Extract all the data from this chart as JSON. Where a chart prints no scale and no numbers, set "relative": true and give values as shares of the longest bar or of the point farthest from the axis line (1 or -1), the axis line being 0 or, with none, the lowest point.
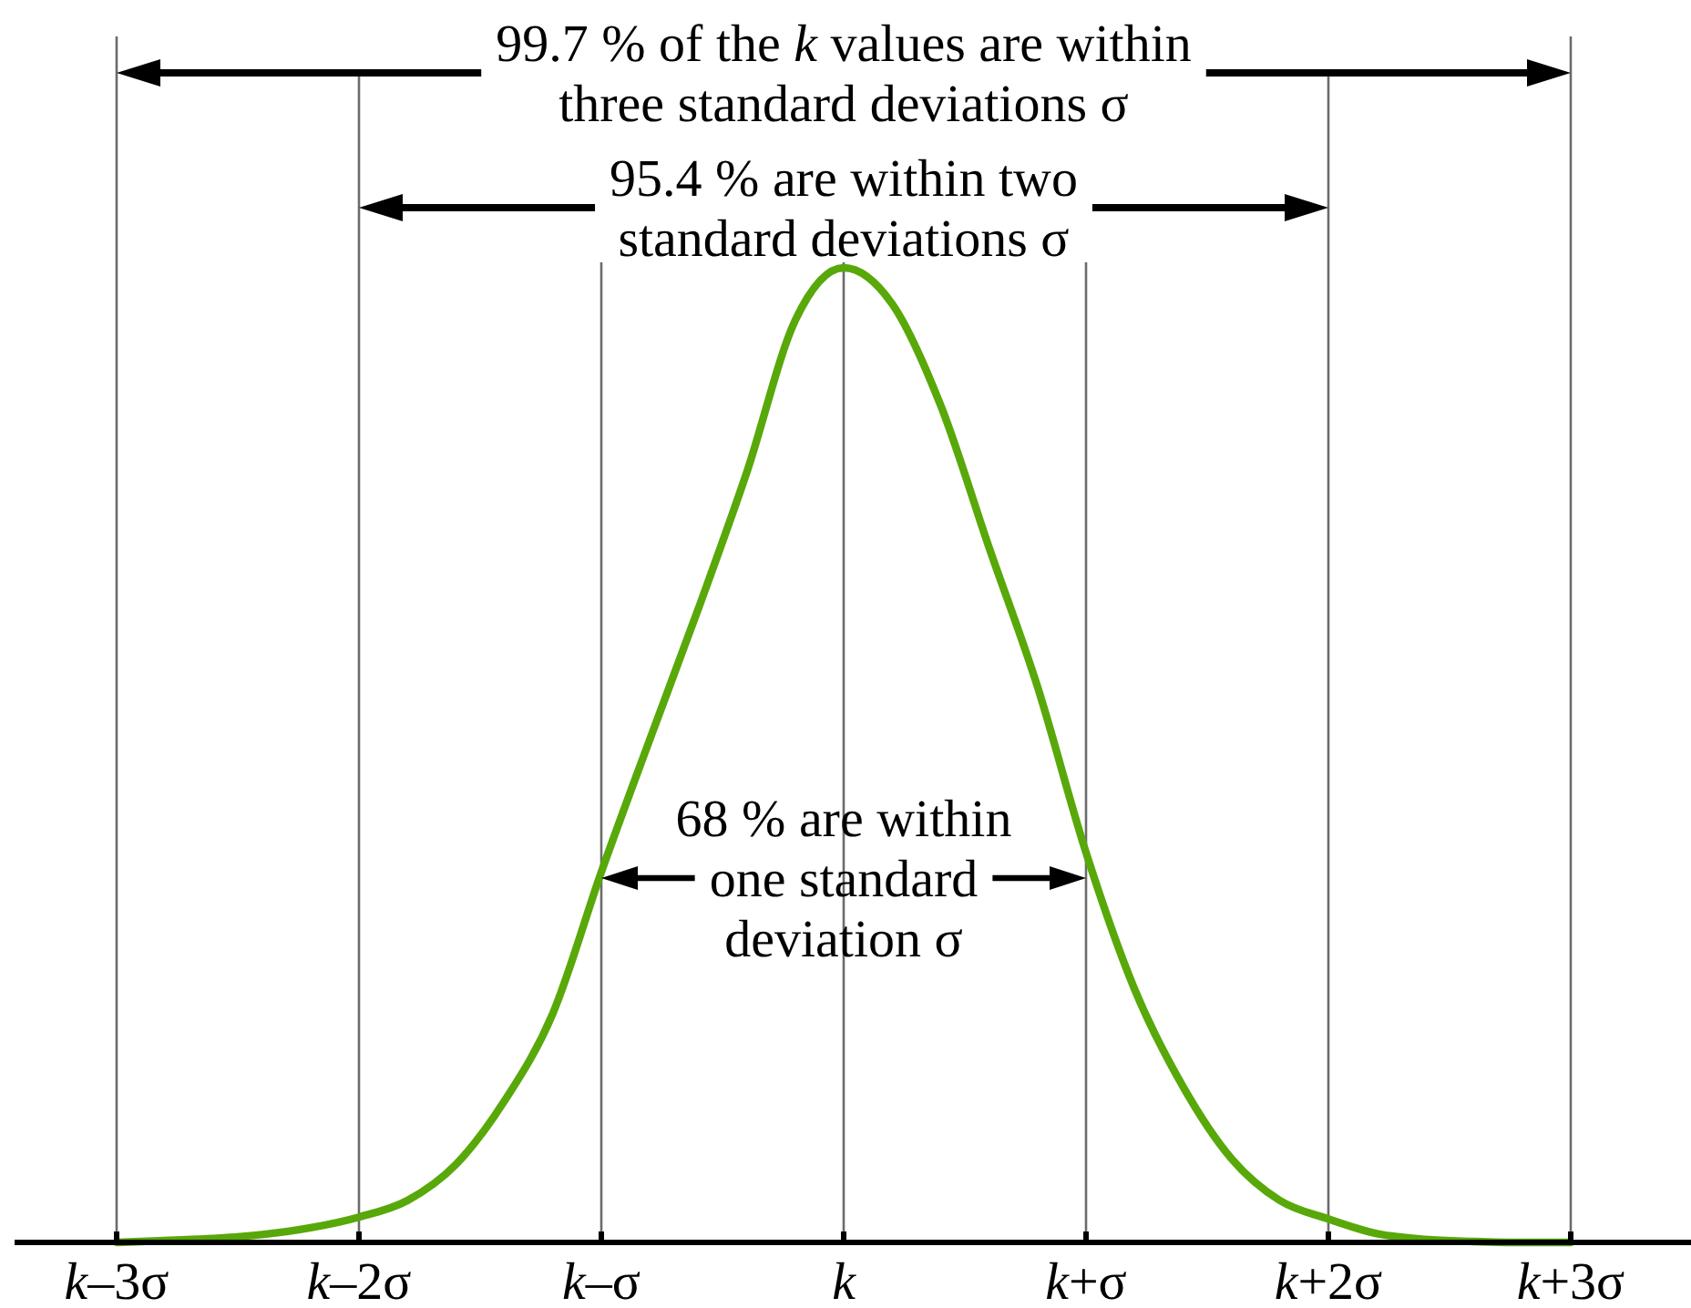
{
  "chart_data": {
    "type": "line",
    "categories": [
      "k–3σ",
      null,
      null,
      null,
      null,
      "k–2σ",
      null,
      null,
      null,
      null,
      "k–σ",
      null,
      null,
      null,
      null,
      "k",
      null,
      null,
      null,
      null,
      "k+σ",
      null,
      null,
      null,
      null,
      "k+2σ",
      null,
      null,
      null,
      null,
      "k+3σ"
    ],
    "series": [
      {
        "color": "#58a80a",
        "values": [
          0,
          0.002,
          0.004,
          0.008,
          0.015,
          0.026,
          0.043,
          0.08,
          0.145,
          0.235,
          0.38,
          0.516,
          0.65,
          0.79,
          0.946,
          1,
          0.963,
          0.859,
          0.713,
          0.57,
          0.4,
          0.26,
          0.16,
          0.086,
          0.043,
          0.024,
          0.009,
          0.003,
          0.001,
          0,
          0
        ]
      }
    ],
    "relative": true,
    "grid": "x",
    "tick_labels": "x",
    "line_style": "solid",
    "annotations": [
      "99.7 % of the k values are within\nthree standard deviations σ",
      "95.4 % are within two\nstandard deviations σ",
      "68 % are within\none standard\ndeviation σ"
    ]
  }
}
